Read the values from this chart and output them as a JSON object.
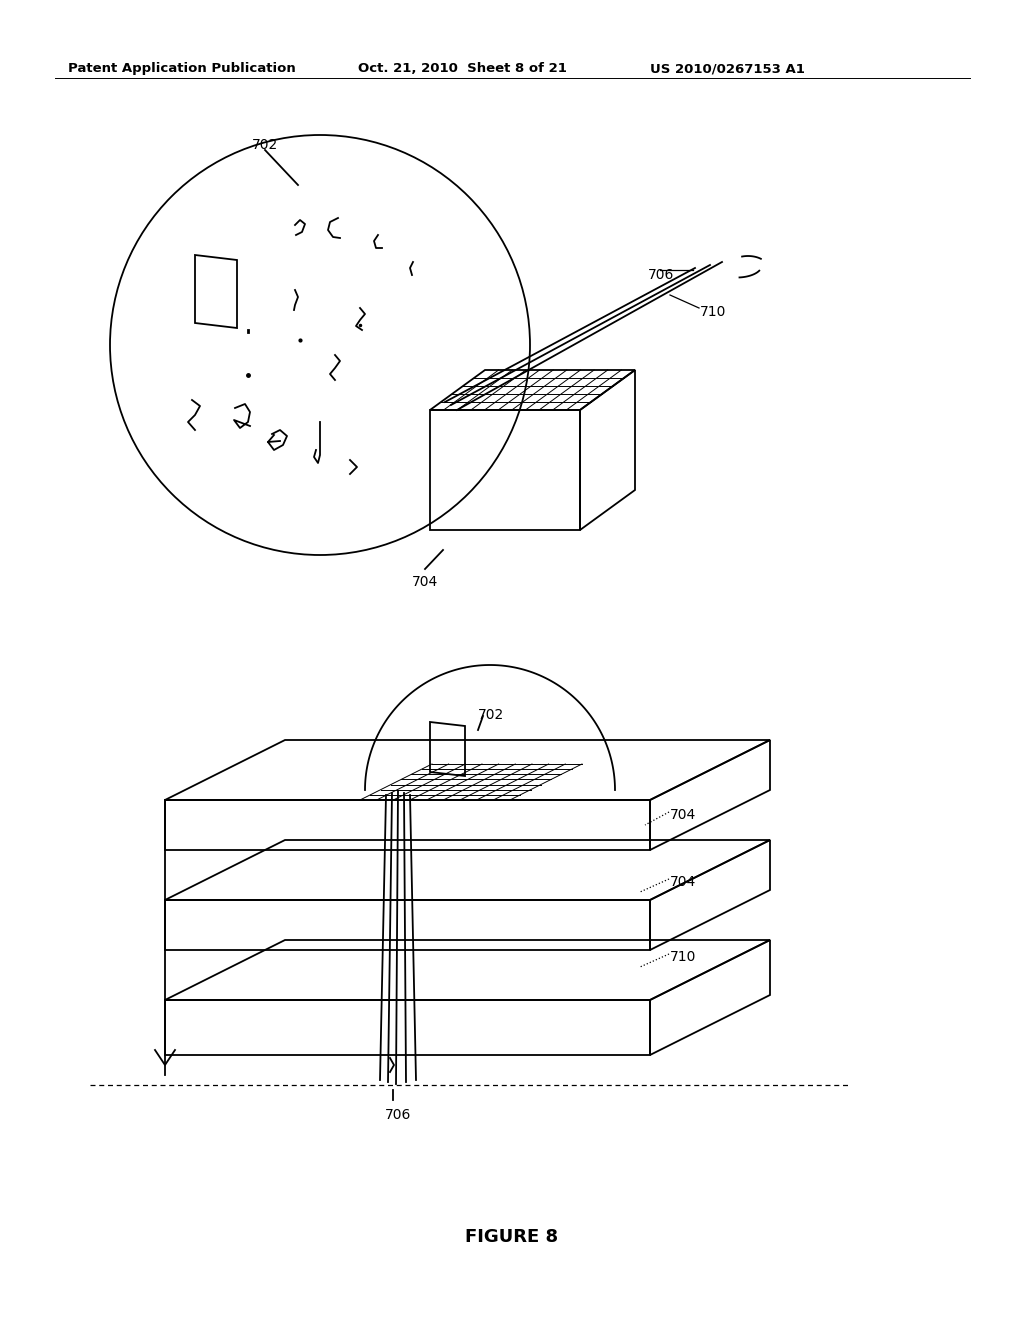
{
  "bg_color": "#ffffff",
  "header_text": "Patent Application Publication",
  "header_date": "Oct. 21, 2010  Sheet 8 of 21",
  "header_patent": "US 2010/0267153 A1",
  "figure_label": "FIGURE 8"
}
